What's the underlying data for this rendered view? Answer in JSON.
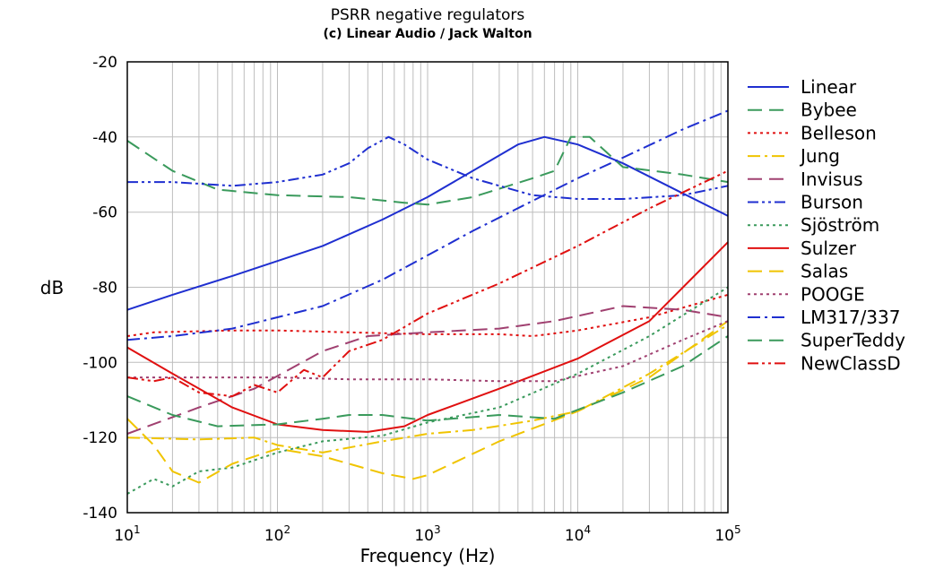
{
  "chart_data": {
    "type": "line",
    "title": "PSRR negative regulators",
    "subtitle": "(c) Linear Audio / Jack Walton",
    "xlabel": "Frequency (Hz)",
    "ylabel": "dB",
    "xscale": "log",
    "xlim": [
      10,
      100000
    ],
    "ylim": [
      -140,
      -20
    ],
    "x_ticks": [
      {
        "value": 10,
        "base": "10",
        "exp": "1"
      },
      {
        "value": 100,
        "base": "10",
        "exp": "2"
      },
      {
        "value": 1000,
        "base": "10",
        "exp": "3"
      },
      {
        "value": 10000,
        "base": "10",
        "exp": "4"
      },
      {
        "value": 100000,
        "base": "10",
        "exp": "5"
      }
    ],
    "y_ticks": [
      "-20",
      "-40",
      "-60",
      "-80",
      "-100",
      "-120",
      "-140"
    ],
    "grid": true,
    "legend_position": "right",
    "series": [
      {
        "name": "Linear",
        "color": "#1f2fd0",
        "dash": "solid",
        "points": [
          [
            10,
            -86
          ],
          [
            20,
            -82
          ],
          [
            50,
            -77
          ],
          [
            100,
            -73
          ],
          [
            200,
            -69
          ],
          [
            500,
            -62
          ],
          [
            1000,
            -56
          ],
          [
            2000,
            -49
          ],
          [
            4000,
            -42
          ],
          [
            6000,
            -40
          ],
          [
            10000,
            -42
          ],
          [
            20000,
            -47
          ],
          [
            50000,
            -55
          ],
          [
            100000,
            -61
          ]
        ]
      },
      {
        "name": "Bybee",
        "color": "#3a9a5c",
        "dash": "longdash",
        "points": [
          [
            10,
            -41
          ],
          [
            20,
            -49
          ],
          [
            40,
            -54
          ],
          [
            100,
            -55.5
          ],
          [
            300,
            -56
          ],
          [
            700,
            -57.5
          ],
          [
            1000,
            -58
          ],
          [
            2000,
            -56
          ],
          [
            5000,
            -51
          ],
          [
            7000,
            -49
          ],
          [
            9000,
            -40
          ],
          [
            12000,
            -40
          ],
          [
            20000,
            -48
          ],
          [
            50000,
            -50
          ],
          [
            100000,
            -52
          ]
        ]
      },
      {
        "name": "Belleson",
        "color": "#e01010",
        "dash": "dot",
        "points": [
          [
            10,
            -93
          ],
          [
            15,
            -92
          ],
          [
            50,
            -91.5
          ],
          [
            100,
            -91.5
          ],
          [
            300,
            -92
          ],
          [
            1000,
            -92.5
          ],
          [
            3000,
            -92.5
          ],
          [
            5000,
            -93
          ],
          [
            10000,
            -91.5
          ],
          [
            30000,
            -88
          ],
          [
            100000,
            -82
          ]
        ]
      },
      {
        "name": "Jung",
        "color": "#f0c400",
        "dash": "dashdot",
        "points": [
          [
            10,
            -120
          ],
          [
            30,
            -120.5
          ],
          [
            70,
            -120
          ],
          [
            100,
            -122
          ],
          [
            200,
            -124
          ],
          [
            500,
            -121
          ],
          [
            1000,
            -119
          ],
          [
            2000,
            -118
          ],
          [
            5000,
            -115.5
          ],
          [
            10000,
            -113
          ],
          [
            30000,
            -103
          ],
          [
            100000,
            -90
          ]
        ]
      },
      {
        "name": "Invisus",
        "color": "#a04070",
        "dash": "longdash",
        "points": [
          [
            10,
            -119
          ],
          [
            30,
            -112
          ],
          [
            70,
            -107
          ],
          [
            200,
            -97
          ],
          [
            400,
            -93
          ],
          [
            1000,
            -92
          ],
          [
            3000,
            -91
          ],
          [
            7000,
            -89
          ],
          [
            20000,
            -85
          ],
          [
            50000,
            -86
          ],
          [
            100000,
            -88
          ]
        ]
      },
      {
        "name": "Burson",
        "color": "#1f2fd0",
        "dash": "dashdotdot",
        "points": [
          [
            10,
            -52
          ],
          [
            20,
            -52
          ],
          [
            50,
            -53
          ],
          [
            100,
            -52
          ],
          [
            200,
            -50
          ],
          [
            300,
            -47
          ],
          [
            400,
            -43
          ],
          [
            550,
            -40
          ],
          [
            700,
            -42
          ],
          [
            1000,
            -46
          ],
          [
            2000,
            -51
          ],
          [
            5000,
            -55.5
          ],
          [
            10000,
            -56.5
          ],
          [
            20000,
            -56.5
          ],
          [
            50000,
            -55.5
          ],
          [
            100000,
            -53
          ]
        ]
      },
      {
        "name": "Sjöström",
        "color": "#3a9a5c",
        "dash": "dot",
        "points": [
          [
            10,
            -135
          ],
          [
            15,
            -131
          ],
          [
            20,
            -133
          ],
          [
            30,
            -129
          ],
          [
            50,
            -128
          ],
          [
            100,
            -124
          ],
          [
            200,
            -121
          ],
          [
            500,
            -119.5
          ],
          [
            1000,
            -116
          ],
          [
            3000,
            -112
          ],
          [
            10000,
            -103
          ],
          [
            30000,
            -93
          ],
          [
            100000,
            -80
          ]
        ]
      },
      {
        "name": "Sulzer",
        "color": "#e01010",
        "dash": "solid",
        "points": [
          [
            10,
            -96
          ],
          [
            20,
            -103
          ],
          [
            50,
            -112
          ],
          [
            100,
            -116.5
          ],
          [
            200,
            -118
          ],
          [
            400,
            -118.5
          ],
          [
            700,
            -117
          ],
          [
            1000,
            -114
          ],
          [
            3000,
            -107
          ],
          [
            10000,
            -99
          ],
          [
            30000,
            -89
          ],
          [
            100000,
            -68
          ]
        ]
      },
      {
        "name": "Salas",
        "color": "#f0c400",
        "dash": "longdash",
        "points": [
          [
            10,
            -115
          ],
          [
            15,
            -122
          ],
          [
            20,
            -129
          ],
          [
            30,
            -132
          ],
          [
            50,
            -127
          ],
          [
            100,
            -123
          ],
          [
            200,
            -125
          ],
          [
            500,
            -129.5
          ],
          [
            800,
            -131
          ],
          [
            1000,
            -130
          ],
          [
            3000,
            -121
          ],
          [
            10000,
            -113
          ],
          [
            30000,
            -104
          ],
          [
            100000,
            -89
          ]
        ]
      },
      {
        "name": "POOGE",
        "color": "#a04070",
        "dash": "dot",
        "points": [
          [
            10,
            -104
          ],
          [
            30,
            -104
          ],
          [
            70,
            -104
          ],
          [
            100,
            -104
          ],
          [
            300,
            -104.5
          ],
          [
            1000,
            -104.5
          ],
          [
            3000,
            -105
          ],
          [
            7000,
            -105
          ],
          [
            20000,
            -101
          ],
          [
            50000,
            -94
          ],
          [
            100000,
            -89
          ]
        ]
      },
      {
        "name": "LM317/337",
        "color": "#1f2fd0",
        "dash": "dashdot",
        "points": [
          [
            10,
            -94
          ],
          [
            20,
            -93
          ],
          [
            50,
            -91
          ],
          [
            100,
            -88
          ],
          [
            200,
            -85
          ],
          [
            500,
            -78
          ],
          [
            1000,
            -71.5
          ],
          [
            2000,
            -65
          ],
          [
            5000,
            -57
          ],
          [
            10000,
            -51
          ],
          [
            20000,
            -45.5
          ],
          [
            50000,
            -38
          ],
          [
            100000,
            -33
          ]
        ]
      },
      {
        "name": "SuperTeddy",
        "color": "#3a9a5c",
        "dash": "longdash",
        "points": [
          [
            10,
            -109
          ],
          [
            20,
            -114
          ],
          [
            40,
            -117
          ],
          [
            100,
            -116.5
          ],
          [
            200,
            -115
          ],
          [
            300,
            -114
          ],
          [
            500,
            -114
          ],
          [
            1000,
            -115.5
          ],
          [
            3000,
            -114
          ],
          [
            7000,
            -115
          ],
          [
            20000,
            -108
          ],
          [
            50000,
            -101
          ],
          [
            100000,
            -93
          ]
        ]
      },
      {
        "name": "NewClassD",
        "color": "#e01010",
        "dash": "dashdotdot",
        "points": [
          [
            10,
            -104
          ],
          [
            15,
            -105
          ],
          [
            20,
            -104
          ],
          [
            30,
            -108
          ],
          [
            50,
            -109
          ],
          [
            70,
            -106
          ],
          [
            100,
            -108
          ],
          [
            150,
            -102
          ],
          [
            200,
            -104
          ],
          [
            300,
            -97
          ],
          [
            500,
            -94
          ],
          [
            1000,
            -87
          ],
          [
            3000,
            -79
          ],
          [
            10000,
            -69
          ],
          [
            30000,
            -59
          ],
          [
            100000,
            -49
          ]
        ]
      }
    ]
  }
}
